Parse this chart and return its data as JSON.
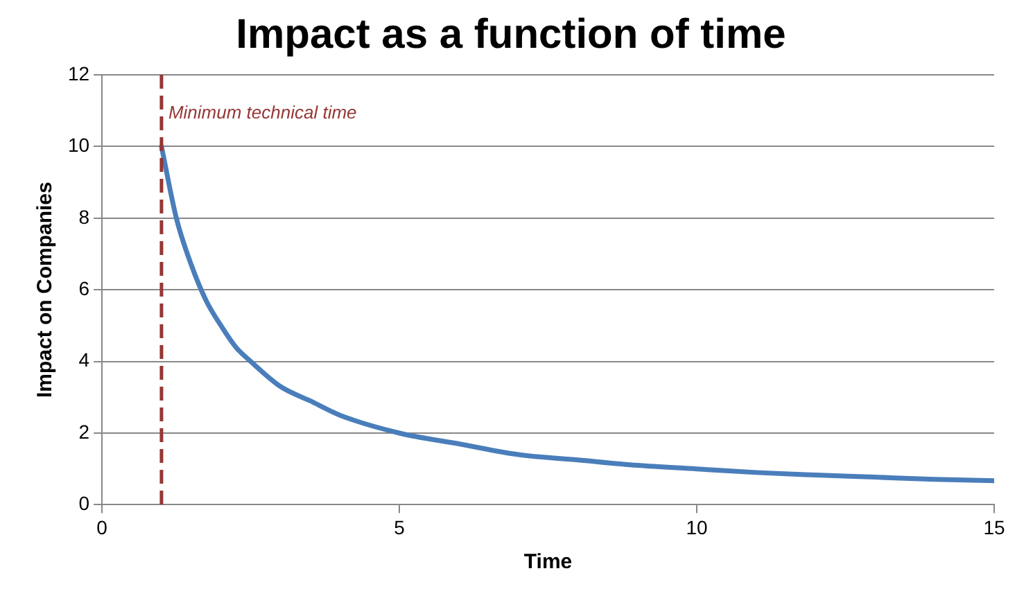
{
  "chart_data": {
    "type": "line",
    "title": "Impact as a function of time",
    "xlabel": "Time",
    "ylabel": "Impact on Companies",
    "x": [
      1,
      1.25,
      1.5,
      1.75,
      2,
      2.25,
      2.5,
      3,
      3.5,
      4,
      5,
      6,
      7,
      8,
      9,
      10,
      11,
      12,
      13,
      14,
      15
    ],
    "series": [
      {
        "color": "#4a7ebb",
        "values": [
          10,
          8,
          6.7,
          5.7,
          5,
          4.4,
          4,
          3.3,
          2.9,
          2.5,
          2,
          1.7,
          1.4,
          1.25,
          1.1,
          1,
          0.9,
          0.83,
          0.77,
          0.71,
          0.67
        ]
      }
    ],
    "xlim": [
      0,
      15
    ],
    "xticks": [
      0,
      5,
      10,
      15
    ],
    "ylim": [
      0,
      12
    ],
    "yticks": [
      0,
      2,
      4,
      6,
      8,
      10,
      12
    ],
    "grid": "y",
    "marker": "none",
    "line_style": "solid",
    "ref_lines": [
      {
        "axis": "x",
        "value": 1,
        "label": "Minimum technical time",
        "color": "#953735",
        "line_style": "dashed"
      }
    ]
  }
}
